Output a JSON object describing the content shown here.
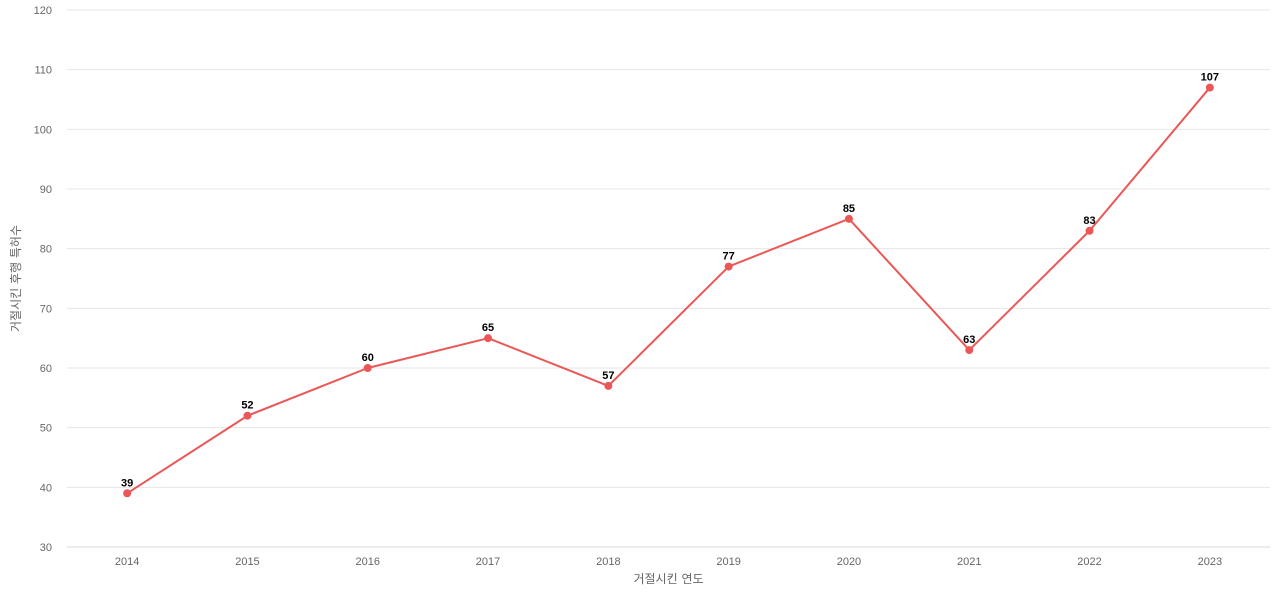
{
  "chart_data": {
    "type": "line",
    "title": "",
    "xlabel": "거절시킨 연도",
    "ylabel": "거절시킨 후행 특허수",
    "categories": [
      "2014",
      "2015",
      "2016",
      "2017",
      "2018",
      "2019",
      "2020",
      "2021",
      "2022",
      "2023"
    ],
    "series": [
      {
        "values": [
          39,
          52,
          60,
          65,
          57,
          77,
          85,
          63,
          83,
          107
        ],
        "color": "#eb5757"
      }
    ],
    "ylim": [
      30,
      120
    ],
    "yticks": [
      30,
      40,
      50,
      60,
      70,
      80,
      90,
      100,
      110,
      120
    ],
    "grid": true,
    "legend": "none"
  }
}
